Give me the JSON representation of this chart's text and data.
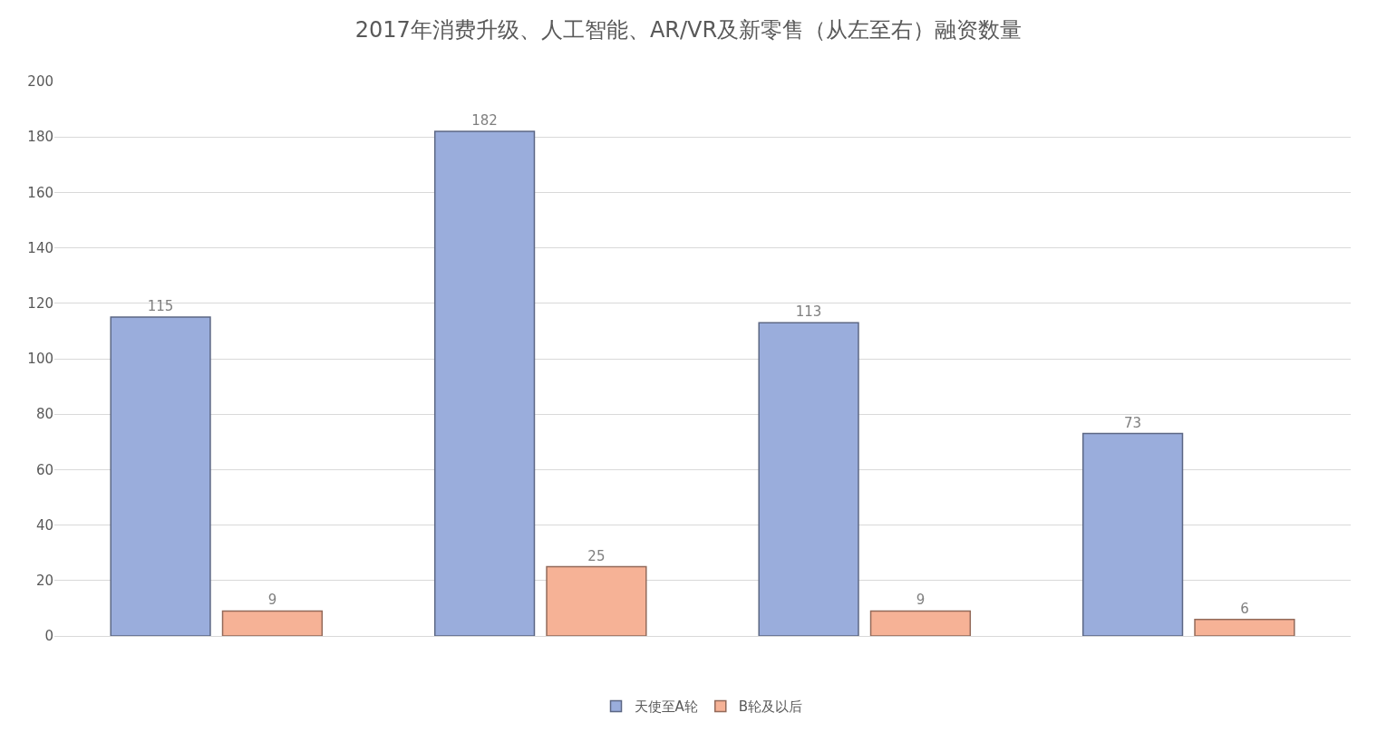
{
  "chart_data": {
    "type": "bar",
    "title": "2017年消费升级、人工智能、AR/VR及新零售（从左至右）融资数量",
    "categories": [
      null,
      null,
      null,
      null
    ],
    "series": [
      {
        "name": "天使至A轮",
        "color": "#9aaddc",
        "values": [
          115,
          182,
          113,
          73
        ]
      },
      {
        "name": "B轮及以后",
        "color": "#f6b296",
        "values": [
          9,
          25,
          9,
          6
        ]
      }
    ],
    "ylim": [
      0,
      200
    ],
    "yticks": [
      0,
      20,
      40,
      60,
      80,
      100,
      120,
      140,
      160,
      180,
      200
    ],
    "grid": "y",
    "legend": "bottom",
    "data_labels": true
  }
}
